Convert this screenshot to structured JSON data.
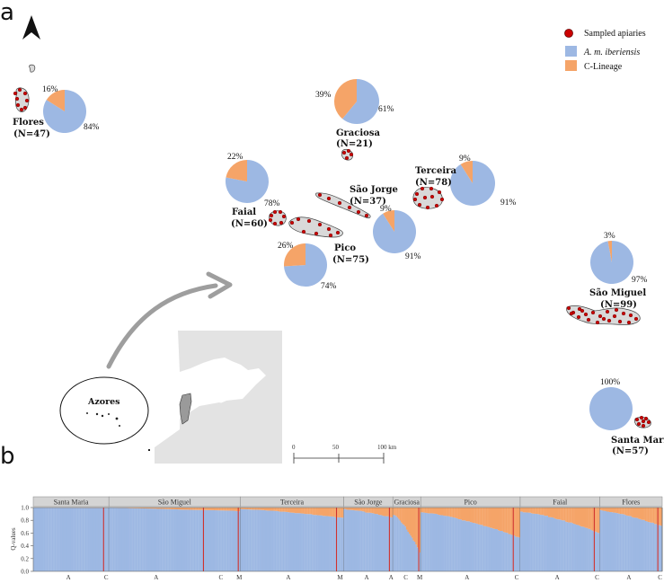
{
  "panel_a_letter": "a",
  "panel_b_letter": "b",
  "legend": {
    "sampled": "Sampled apiaries",
    "iberiensis": "A. m. iberiensis",
    "clineage": "C-Lineage"
  },
  "colors": {
    "iberiensis": "#9db8e3",
    "clineage": "#f5a468",
    "apiary": "#cc0000",
    "island": "#d9d9d9"
  },
  "inset_label": "Azores",
  "scalebar": {
    "zero": "0",
    "mid": "50",
    "end": "100 km"
  },
  "chart_data": [
    {
      "type": "pie",
      "description_hidden": false,
      "pies": [
        {
          "island": "Flores",
          "n": "(N=47)",
          "iberiensis": 84,
          "clineage": 16,
          "ib_label": "84%",
          "c_label": "16%"
        },
        {
          "island": "Graciosa",
          "n": "(N=21)",
          "iberiensis": 61,
          "clineage": 39,
          "ib_label": "61%",
          "c_label": "39%"
        },
        {
          "island": "Faial",
          "n": "(N=60)",
          "iberiensis": 78,
          "clineage": 22,
          "ib_label": "78%",
          "c_label": "22%"
        },
        {
          "island": "São Jorge",
          "n": "(N=37)",
          "iberiensis": 91,
          "clineage": 9,
          "ib_label": "91%",
          "c_label": "9%"
        },
        {
          "island": "Terceira",
          "n": "(N=78)",
          "iberiensis": 91,
          "clineage": 9,
          "ib_label": "91%",
          "c_label": "9%"
        },
        {
          "island": "Pico",
          "n": "(N=75)",
          "iberiensis": 74,
          "clineage": 26,
          "ib_label": "74%",
          "c_label": "26%"
        },
        {
          "island": "São Miguel",
          "n": "(N=99)",
          "iberiensis": 97,
          "clineage": 3,
          "ib_label": "97%",
          "c_label": "3%"
        },
        {
          "island": "Santa Maria",
          "n": "(N=57)",
          "iberiensis": 100,
          "clineage": 0,
          "ib_label": "100%",
          "c_label": ""
        }
      ]
    },
    {
      "type": "bar",
      "stacked": true,
      "ylabel": "Q-values",
      "ylim": [
        0,
        1
      ],
      "yticks": [
        "0.0",
        "0.2",
        "0.4",
        "0.6",
        "0.8",
        "1.0"
      ],
      "groups": [
        {
          "name": "Santa Maria",
          "n": 57,
          "classes": [
            "A",
            "C"
          ],
          "c_mean": 0.0
        },
        {
          "name": "São Miguel",
          "n": 99,
          "classes": [
            "A",
            "C",
            "M"
          ],
          "c_mean": 0.03
        },
        {
          "name": "Terceira",
          "n": 78,
          "classes": [
            "A",
            "M"
          ],
          "c_mean": 0.09
        },
        {
          "name": "São Jorge",
          "n": 37,
          "classes": [
            "A",
            "A"
          ],
          "c_mean": 0.09
        },
        {
          "name": "Graciosa",
          "n": 21,
          "classes": [
            "C",
            "M"
          ],
          "c_mean": 0.39
        },
        {
          "name": "Pico",
          "n": 75,
          "classes": [
            "A",
            "C"
          ],
          "c_mean": 0.26
        },
        {
          "name": "Faial",
          "n": 60,
          "classes": [
            "A",
            "C"
          ],
          "c_mean": 0.22
        },
        {
          "name": "Flores",
          "n": 47,
          "classes": [
            "A",
            "C"
          ],
          "c_mean": 0.16
        }
      ]
    }
  ]
}
